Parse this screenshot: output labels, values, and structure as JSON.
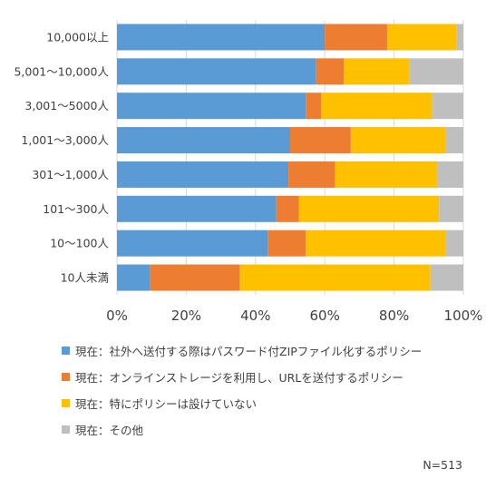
{
  "chart_data": {
    "type": "bar",
    "orientation": "horizontal",
    "stacked": true,
    "percent": true,
    "categories": [
      "10,000以上",
      "5,001～10,000人",
      "3,001～5000人",
      "1,001～3,000人",
      "301～1,000人",
      "101～300人",
      "10～100人",
      "10人未満"
    ],
    "series": [
      {
        "name": "現在：社外へ送付する際はパスワード付ZIPファイル化するポリシー",
        "color": "#5B9BD5",
        "values": [
          60,
          57.5,
          54.5,
          50,
          49.5,
          46,
          43.5,
          9.5
        ]
      },
      {
        "name": "現在：オンラインストレージを利用し、URLを送付するポリシー",
        "color": "#ED7D31",
        "values": [
          18,
          8,
          4.5,
          17.5,
          13.5,
          6.5,
          11,
          26
        ]
      },
      {
        "name": "現在：特にポリシーは設けていない",
        "color": "#FFC000",
        "values": [
          20,
          19,
          32,
          27.5,
          29.5,
          40.5,
          40.5,
          55
        ]
      },
      {
        "name": "現在：その他",
        "color": "#BFBFBF",
        "values": [
          2,
          15.5,
          9,
          5,
          7.5,
          7,
          5,
          9.5
        ]
      }
    ],
    "xlim": [
      0,
      100
    ],
    "xticks": [
      "0%",
      "20%",
      "40%",
      "60%",
      "80%",
      "100%"
    ],
    "grid": true,
    "legend_position": "bottom",
    "note": "N=513"
  }
}
